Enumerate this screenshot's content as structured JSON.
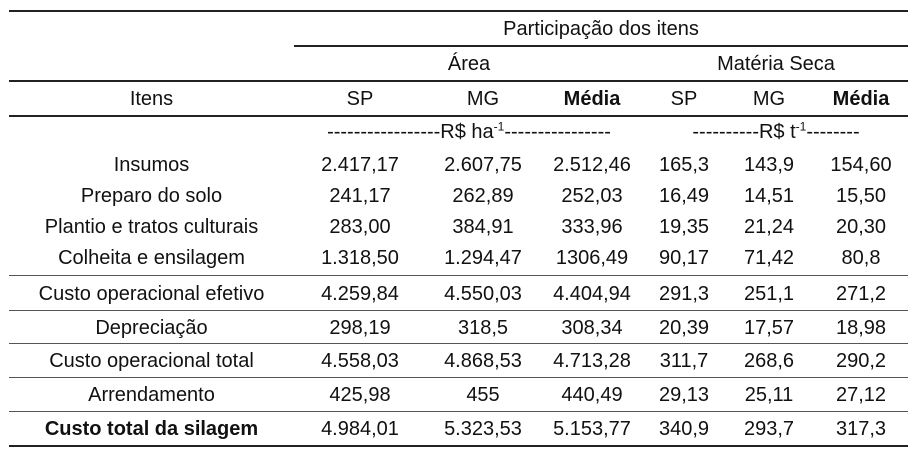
{
  "table": {
    "group_header": "Participação dos itens",
    "subgroups": [
      "Área",
      "Matéria Seca"
    ],
    "row_header": "Itens",
    "columns": [
      "SP",
      "MG",
      "Média",
      "SP",
      "MG",
      "Média"
    ],
    "unit_area": {
      "prefix": "-----------------R$ ha",
      "sup": "-1",
      "suffix": "----------------"
    },
    "unit_ms": {
      "prefix": "----------R$ t",
      "sup": "-1",
      "suffix": "--------"
    },
    "rows": [
      {
        "label": "Insumos",
        "values": [
          "2.417,17",
          "2.607,75",
          "2.512,46",
          "165,3",
          "143,9",
          "154,60"
        ]
      },
      {
        "label": "Preparo do solo",
        "values": [
          "241,17",
          "262,89",
          "252,03",
          "16,49",
          "14,51",
          "15,50"
        ]
      },
      {
        "label": "Plantio e tratos culturais",
        "values": [
          "283,00",
          "384,91",
          "333,96",
          "19,35",
          "21,24",
          "20,30"
        ]
      },
      {
        "label": "Colheita e ensilagem",
        "values": [
          "1.318,50",
          "1.294,47",
          "1306,49",
          "90,17",
          "71,42",
          "80,8"
        ]
      },
      {
        "label": "Custo operacional efetivo",
        "values": [
          "4.259,84",
          "4.550,03",
          "4.404,94",
          "291,3",
          "251,1",
          "271,2"
        ]
      },
      {
        "label": "Depreciação",
        "values": [
          "298,19",
          "318,5",
          "308,34",
          "20,39",
          "17,57",
          "18,98"
        ]
      },
      {
        "label": "Custo operacional total",
        "values": [
          "4.558,03",
          "4.868,53",
          "4.713,28",
          "311,7",
          "268,6",
          "290,2"
        ]
      },
      {
        "label": "Arrendamento",
        "values": [
          "425,98",
          "455",
          "440,49",
          "29,13",
          "25,11",
          "27,12"
        ]
      },
      {
        "label": "Custo total da silagem",
        "values": [
          "4.984,01",
          "5.323,53",
          "5.153,77",
          "340,9",
          "293,7",
          "317,3"
        ]
      }
    ]
  }
}
